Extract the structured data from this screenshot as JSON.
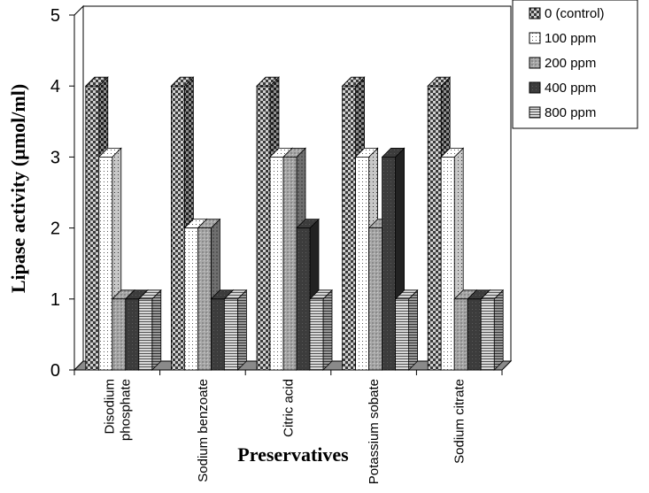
{
  "chart_data": {
    "type": "bar",
    "categories": [
      [
        "Disodium",
        "phosphate"
      ],
      [
        "Sodium benzoate"
      ],
      [
        "Citric acid"
      ],
      [
        "Potassium sobate"
      ],
      [
        "Sodium citrate"
      ]
    ],
    "series": [
      {
        "name": "0 (control)",
        "values": [
          4,
          4,
          4,
          4,
          4
        ],
        "pattern": "checker"
      },
      {
        "name": "100 ppm",
        "values": [
          3,
          2,
          3,
          3,
          3
        ],
        "pattern": "dots"
      },
      {
        "name": "200 ppm",
        "values": [
          1,
          2,
          3,
          2,
          1
        ],
        "pattern": "gray-dots"
      },
      {
        "name": "400 ppm",
        "values": [
          1,
          1,
          2,
          3,
          1
        ],
        "pattern": "dark"
      },
      {
        "name": "800 ppm",
        "values": [
          1,
          1,
          1,
          1,
          1
        ],
        "pattern": "hlines"
      }
    ],
    "xlabel": "Preservatives",
    "ylabel": "Lipase activity (µmol/ml)",
    "ylim": [
      0,
      5
    ],
    "yticks": [
      0,
      1,
      2,
      3,
      4,
      5
    ],
    "legend_position": "top-right",
    "grid": false
  }
}
